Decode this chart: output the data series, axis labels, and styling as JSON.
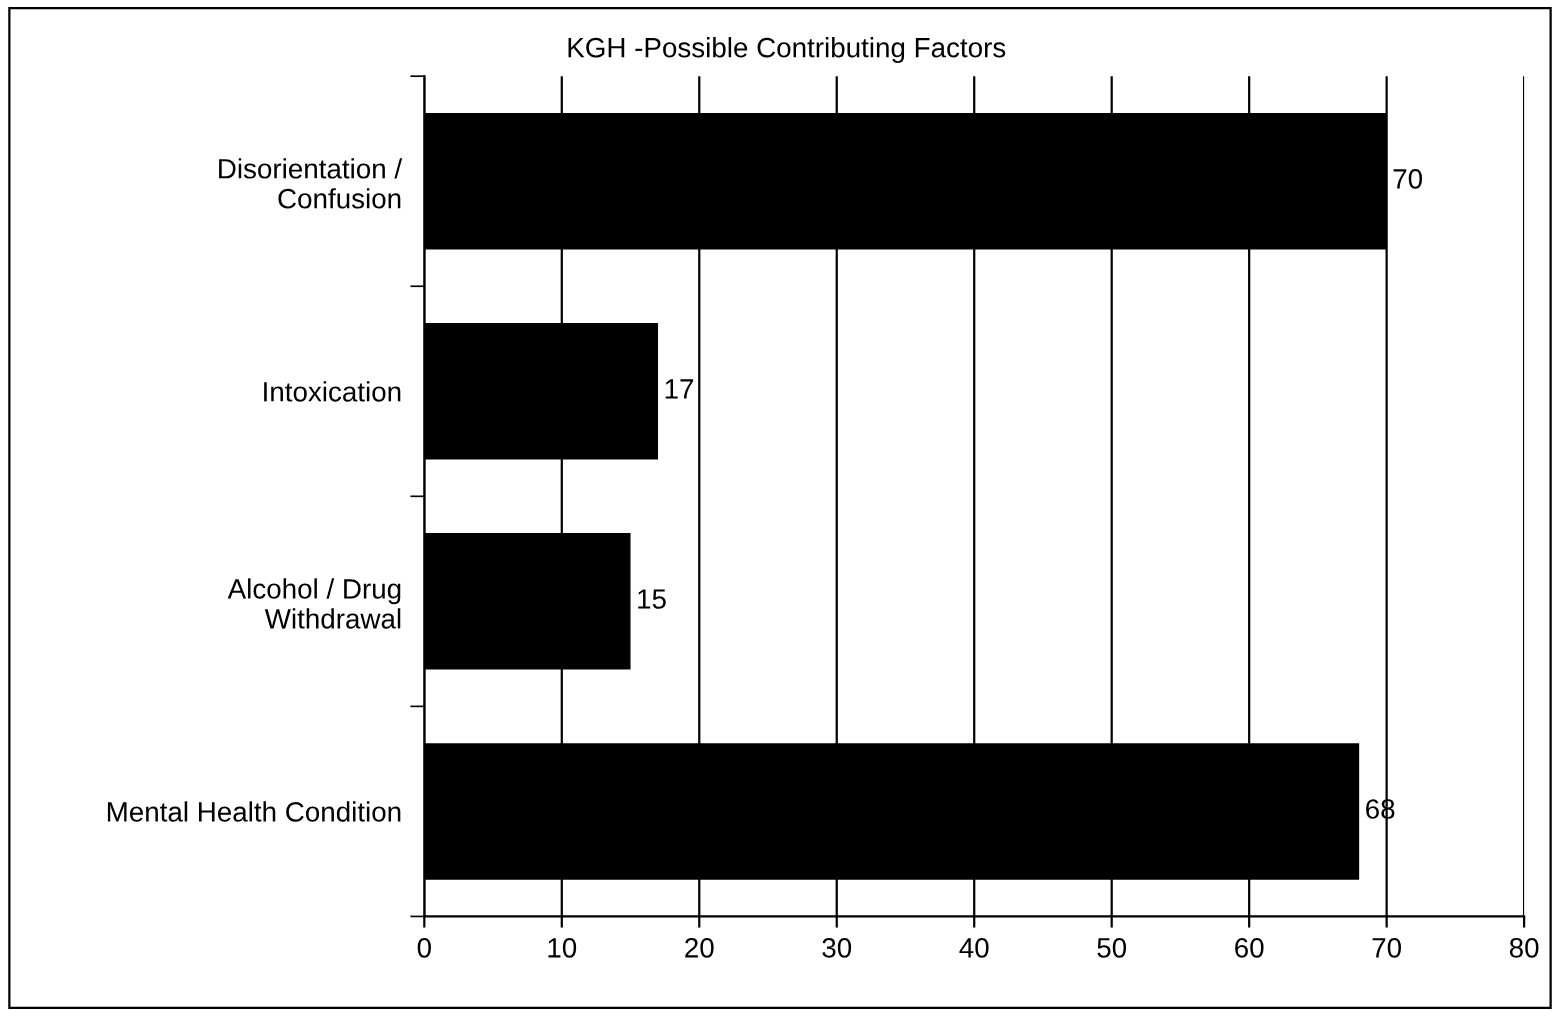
{
  "chart_data": {
    "type": "bar",
    "orientation": "horizontal",
    "title": "KGH -Possible Contributing Factors",
    "categories": [
      "Disorientation /\nConfusion",
      "Intoxication",
      "Alcohol / Drug\nWithdrawal",
      "Mental Health Condition"
    ],
    "values": [
      70,
      17,
      15,
      68
    ],
    "color": "#000000",
    "xlim": [
      0,
      80
    ],
    "xticks": [
      0,
      10,
      20,
      30,
      40,
      50,
      60,
      70,
      80
    ],
    "grid": "x",
    "data_labels": true,
    "legend": false
  }
}
